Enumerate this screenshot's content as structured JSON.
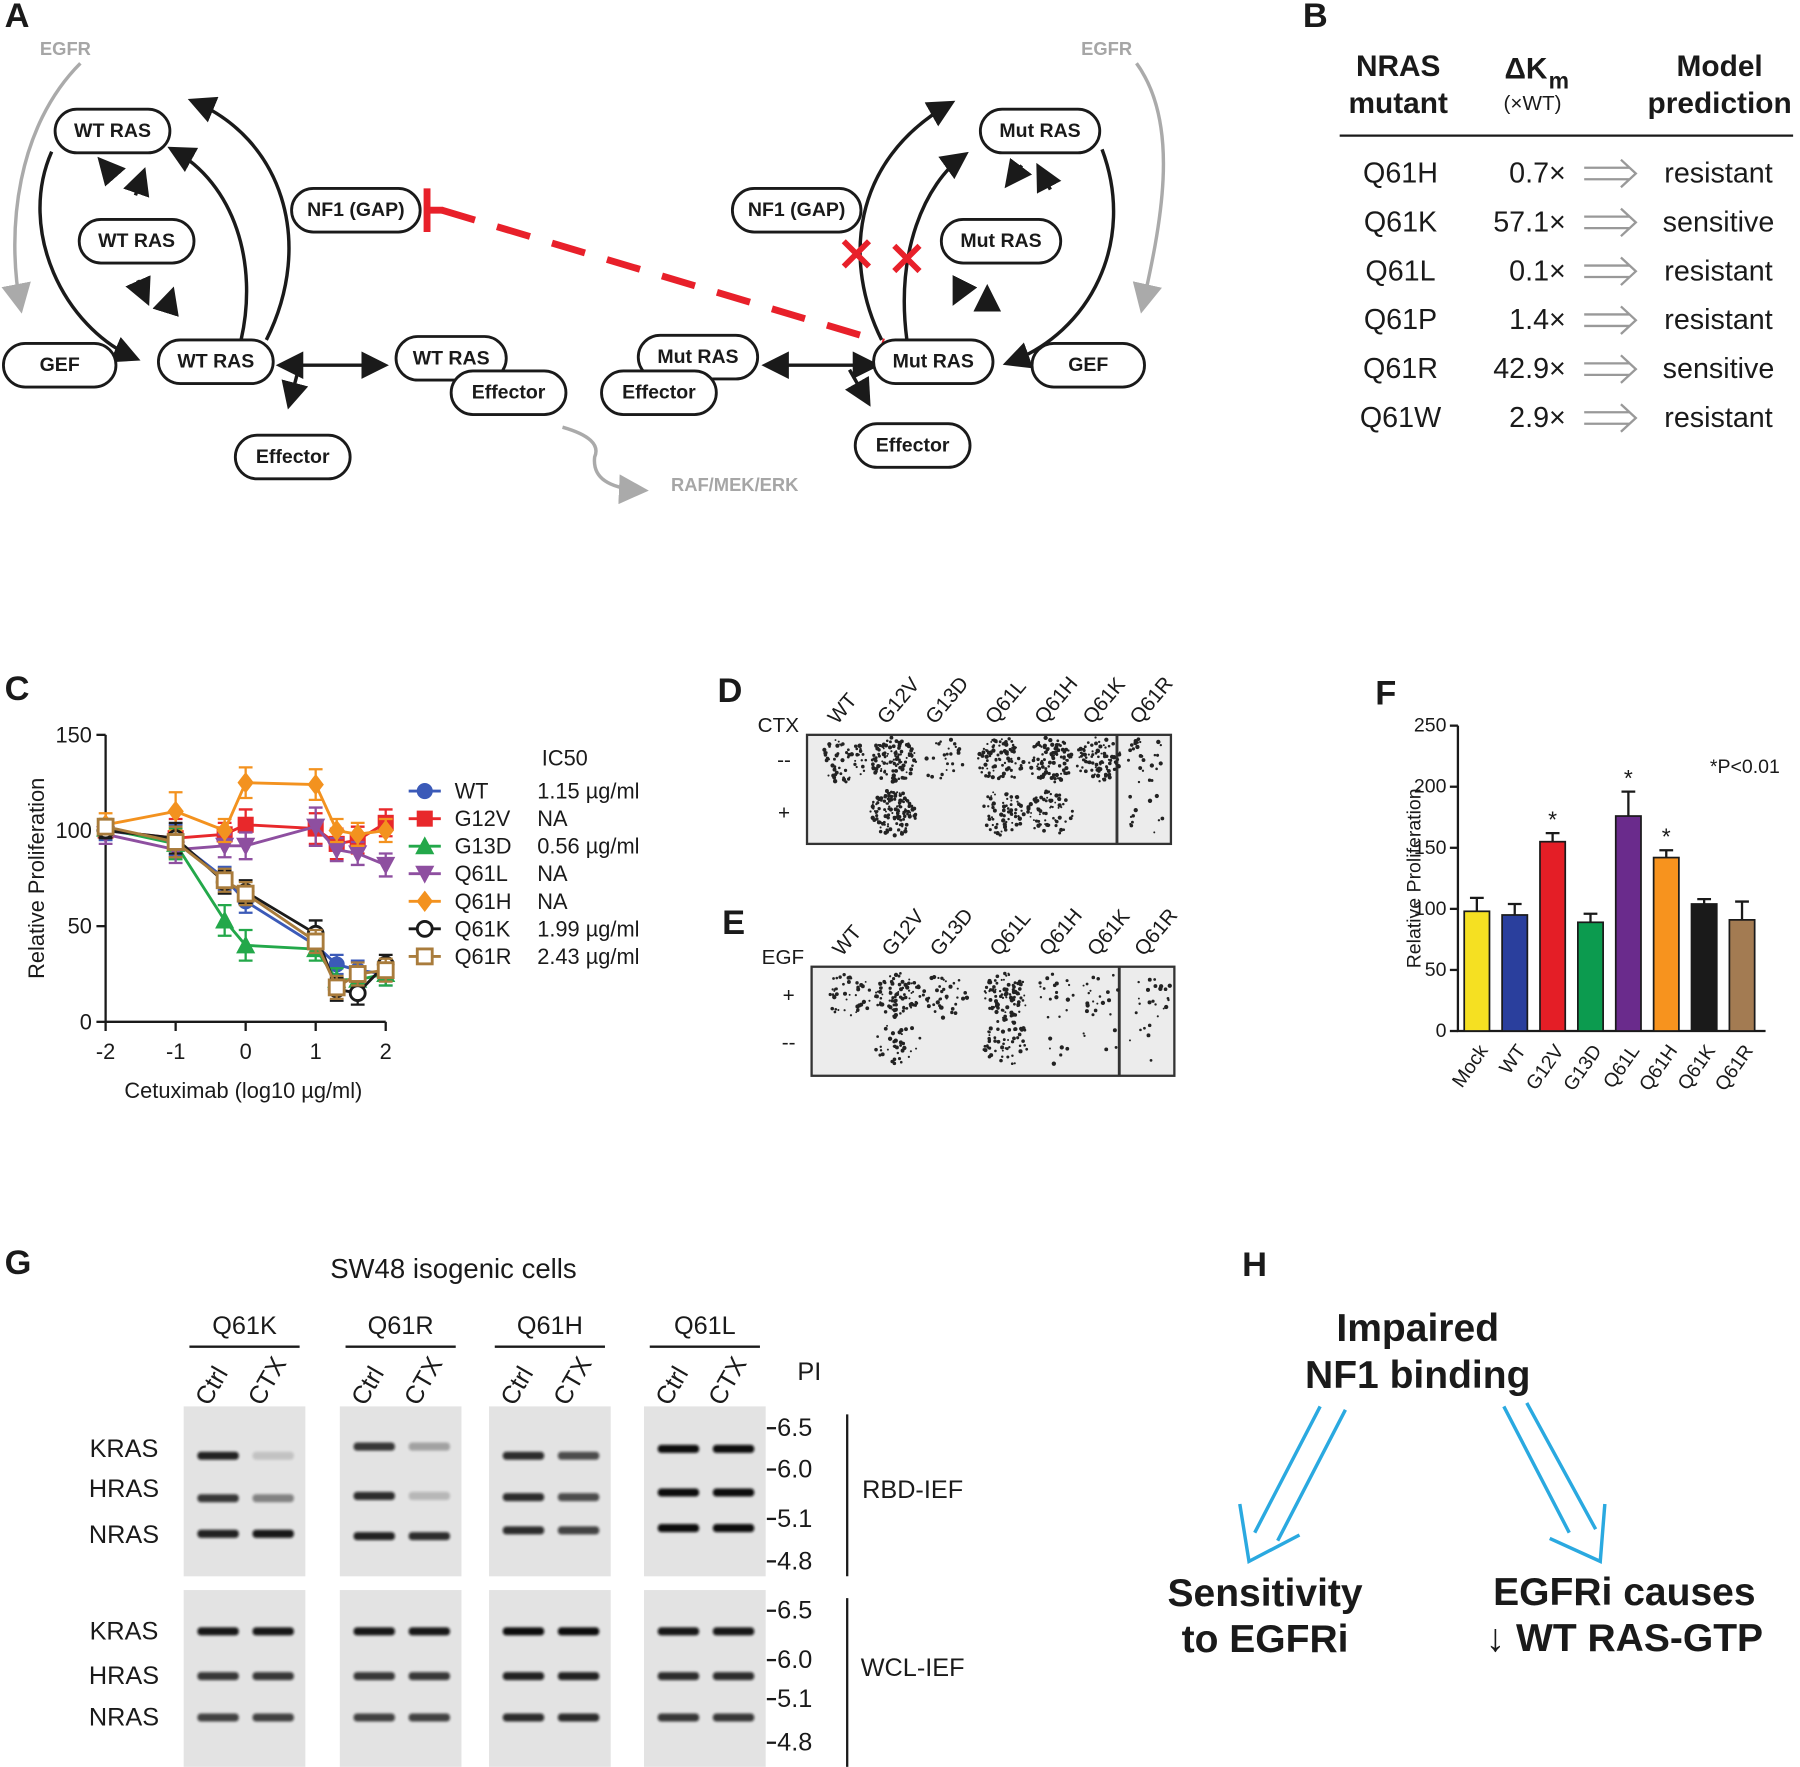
{
  "panel_a": {
    "letter": "A",
    "egfr": [
      "EGFR",
      "EGFR"
    ],
    "raf": "RAF/MEK/ERK",
    "nodes": [
      "WT RAS",
      "WT RAS",
      "WT RAS",
      "GEF",
      "NF1 (GAP)",
      "WT RAS",
      "Effector",
      "Effector",
      "Mut RAS",
      "Effector",
      "NF1 (GAP)",
      "Mut RAS",
      "Mut RAS",
      "Mut RAS",
      "GEF",
      "Effector"
    ]
  },
  "panel_b": {
    "letter": "B",
    "header": {
      "mutant": [
        "NRAS",
        "mutant"
      ],
      "dkm": "ΔK",
      "dkm_sub": "m",
      "dkm_unit": "(×WT)",
      "prediction": [
        "Model",
        "prediction"
      ]
    },
    "rows": [
      [
        "Q61H",
        "0.7×",
        "resistant"
      ],
      [
        "Q61K",
        "57.1×",
        "sensitive"
      ],
      [
        "Q61L",
        "0.1×",
        "resistant"
      ],
      [
        "Q61P",
        "1.4×",
        "resistant"
      ],
      [
        "Q61R",
        "42.9×",
        "sensitive"
      ],
      [
        "Q61W",
        "2.9×",
        "resistant"
      ]
    ]
  },
  "chart_data": [
    {
      "type": "line",
      "letter": "C",
      "ylabel": "Relative Proliferation",
      "xlabel": "Cetuximab (log10 µg/ml)",
      "legend_title": "IC50",
      "x": [
        -2,
        -1,
        -0.3,
        0,
        1,
        1.3,
        1.6,
        2
      ],
      "xlim": [
        -2,
        2
      ],
      "xticks": [
        -2,
        -1,
        0,
        1,
        2
      ],
      "ylim": [
        0,
        150
      ],
      "yticks": [
        0,
        50,
        100,
        150
      ],
      "series": [
        {
          "name": "WT",
          "ic50": "1.15 µg/ml",
          "color": "#3b5ab8",
          "marker": "circle",
          "values": [
            100,
            95,
            75,
            63,
            40,
            30,
            27,
            25
          ],
          "errors": [
            5,
            8,
            6,
            6,
            5,
            5,
            5,
            6
          ]
        },
        {
          "name": "G12V",
          "ic50": "NA",
          "color": "#e8282b",
          "marker": "square",
          "values": [
            100,
            96,
            98,
            103,
            101,
            93,
            95,
            104
          ],
          "errors": [
            4,
            10,
            6,
            8,
            8,
            8,
            7,
            7
          ]
        },
        {
          "name": "G13D",
          "ic50": "0.56 µg/ml",
          "color": "#23a84a",
          "marker": "triangle",
          "values": [
            101,
            93,
            53,
            40,
            38,
            22,
            22,
            25
          ],
          "errors": [
            5,
            8,
            8,
            8,
            6,
            6,
            6,
            6
          ]
        },
        {
          "name": "Q61L",
          "ic50": "NA",
          "color": "#8e4fa0",
          "marker": "triangle-down",
          "values": [
            98,
            90,
            92,
            92,
            102,
            90,
            88,
            82
          ],
          "errors": [
            5,
            7,
            6,
            7,
            10,
            6,
            6,
            6
          ]
        },
        {
          "name": "Q61H",
          "ic50": "NA",
          "color": "#f3921f",
          "marker": "diamond",
          "values": [
            103,
            110,
            100,
            125,
            124,
            100,
            98,
            100
          ],
          "errors": [
            6,
            10,
            6,
            8,
            8,
            6,
            6,
            6
          ]
        },
        {
          "name": "Q61K",
          "ic50": "1.99 µg/ml",
          "color": "#1a1a1a",
          "marker": "circle-open",
          "values": [
            100,
            96,
            73,
            68,
            46,
            17,
            15,
            30
          ],
          "errors": [
            4,
            8,
            6,
            6,
            7,
            6,
            6,
            5
          ]
        },
        {
          "name": "Q61R",
          "ic50": "2.43 µg/ml",
          "color": "#a97c3c",
          "marker": "square-open",
          "values": [
            102,
            94,
            74,
            67,
            42,
            18,
            25,
            27
          ],
          "errors": [
            4,
            8,
            6,
            6,
            6,
            6,
            6,
            6
          ]
        }
      ]
    },
    {
      "type": "bar",
      "letter": "F",
      "ylabel": "Relative Proliferation",
      "note": "*P<0.01",
      "categories": [
        "Mock",
        "WT",
        "G12V",
        "G13D",
        "Q61L",
        "Q61H",
        "Q61K",
        "Q61R"
      ],
      "values": [
        98,
        95,
        155,
        89,
        176,
        142,
        104,
        91
      ],
      "errors": [
        11,
        9,
        7,
        7,
        20,
        6,
        4,
        15
      ],
      "significance": [
        null,
        null,
        "*",
        null,
        "*",
        "*",
        null,
        null
      ],
      "colors": [
        "#f5e022",
        "#2a3f9d",
        "#e41e26",
        "#0c9b4f",
        "#6a2b8c",
        "#f7931e",
        "#1a1a1a",
        "#a37b52"
      ],
      "ylim": [
        0,
        250
      ],
      "yticks": [
        0,
        50,
        100,
        150,
        200,
        250
      ]
    }
  ],
  "panel_d": {
    "letter": "D",
    "treatment": "CTX",
    "rows": [
      "--",
      "+"
    ],
    "columns": [
      "WT",
      "G12V",
      "G13D",
      "Q61L",
      "Q61H",
      "Q61K",
      "Q61R"
    ]
  },
  "panel_e": {
    "letter": "E",
    "treatment": "EGF",
    "rows": [
      "+",
      "--"
    ],
    "columns": [
      "WT",
      "G12V",
      "G13D",
      "Q61L",
      "Q61H",
      "Q61K",
      "Q61R"
    ]
  },
  "panel_g": {
    "letter": "G",
    "title": "SW48 isogenic cells",
    "pi_title": "PI",
    "groups": [
      {
        "name": "Q61K",
        "lanes": [
          "Ctrl",
          "CTX"
        ]
      },
      {
        "name": "Q61R",
        "lanes": [
          "Ctrl",
          "CTX"
        ]
      },
      {
        "name": "Q61H",
        "lanes": [
          "Ctrl",
          "CTX"
        ]
      },
      {
        "name": "Q61L",
        "lanes": [
          "Ctrl",
          "CTX"
        ]
      }
    ],
    "blots": [
      {
        "label": "RBD-IEF",
        "proteins": [
          "KRAS",
          "HRAS",
          "NRAS"
        ],
        "pi": [
          "6.5",
          "6.0",
          "5.1",
          "4.8"
        ]
      },
      {
        "label": "WCL-IEF",
        "proteins": [
          "KRAS",
          "HRAS",
          "NRAS"
        ],
        "pi": [
          "6.5",
          "6.0",
          "5.1",
          "4.8"
        ]
      }
    ]
  },
  "panel_h": {
    "letter": "H",
    "cause": [
      "Impaired",
      "NF1 binding"
    ],
    "effect_left": [
      "Sensitivity",
      "to EGFRi"
    ],
    "effect_right": [
      "EGFRi causes",
      "↓ WT RAS-GTP"
    ]
  }
}
